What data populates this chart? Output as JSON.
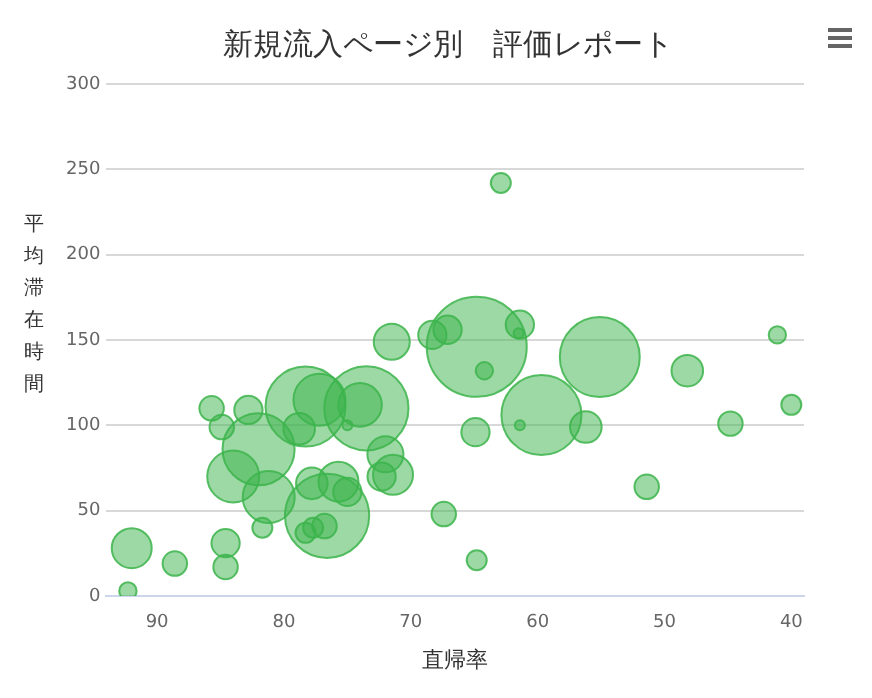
{
  "chart_data": {
    "type": "bubble",
    "title": "新規流入ページ別　評価レポート",
    "xlabel": "直帰率",
    "ylabel": "平均滞在時間",
    "x": [
      92.3,
      92,
      88.6,
      84.6,
      84.6,
      85.7,
      84.9,
      82.8,
      82,
      84,
      81.2,
      81.7,
      78.3,
      77.2,
      78.8,
      73.5,
      74,
      75,
      76.6,
      77.8,
      75.7,
      75,
      76.8,
      78.3,
      77.7,
      72,
      71.4,
      72.3,
      71.5,
      67.4,
      64.8,
      64.8,
      64.2,
      64.9,
      62.9,
      61.4,
      61.5,
      59.7,
      61.4,
      56.2,
      55.1,
      51.4,
      48.2,
      44.8,
      41.1,
      40,
      68.3,
      67.1
    ],
    "values": [
      3,
      28,
      19,
      17,
      31,
      110,
      99,
      109,
      86,
      70,
      58,
      40,
      111,
      115,
      98,
      110,
      112,
      100,
      47,
      66,
      67,
      61,
      41,
      37,
      40,
      83,
      71,
      70,
      149,
      48,
      21,
      146,
      132,
      96,
      242,
      159,
      154,
      106,
      100,
      99,
      140,
      64,
      132,
      101,
      153,
      112,
      153,
      156
    ],
    "sizes": [
      0.03,
      0.16,
      0.06,
      0.06,
      0.08,
      0.06,
      0.06,
      0.08,
      0.52,
      0.27,
      0.27,
      0.04,
      0.64,
      0.27,
      0.1,
      0.71,
      0.19,
      0.01,
      0.71,
      0.1,
      0.16,
      0.08,
      0.06,
      0.04,
      0.04,
      0.13,
      0.16,
      0.08,
      0.13,
      0.06,
      0.04,
      1,
      0.03,
      0.08,
      0.04,
      0.08,
      0.01,
      0.64,
      0.01,
      0.1,
      0.64,
      0.06,
      0.1,
      0.06,
      0.03,
      0.04,
      0.08,
      0.08
    ],
    "color": "#3cb44b",
    "xlim": [
      94,
      39
    ],
    "xticks": [
      90,
      80,
      70,
      60,
      50,
      40
    ],
    "ylim": [
      0,
      300
    ],
    "yticks": [
      0,
      50,
      100,
      150,
      200,
      250,
      300
    ],
    "grid": "y"
  }
}
